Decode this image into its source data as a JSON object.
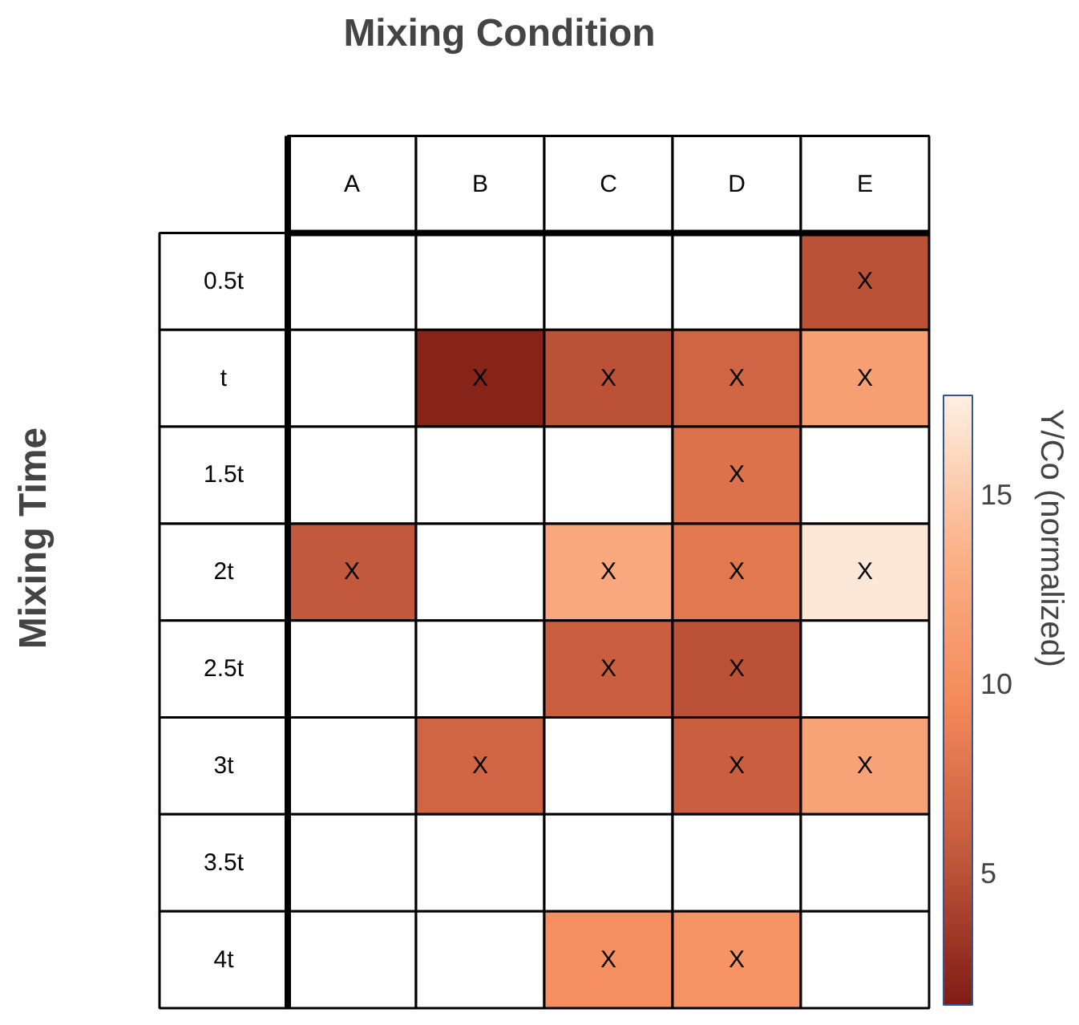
{
  "chart_data": {
    "type": "heatmap",
    "title": "Mixing Condition",
    "ylabel": "Mixing Time",
    "clabel": "Y/Co (normalized)",
    "categories": [
      "A",
      "B",
      "C",
      "D",
      "E"
    ],
    "y_categories": [
      "0.5t",
      "t",
      "1.5t",
      "2t",
      "2.5t",
      "3t",
      "3.5t",
      "4t"
    ],
    "cells": [
      [
        null,
        null,
        null,
        null,
        5
      ],
      [
        null,
        2,
        5,
        6.5,
        11.5
      ],
      [
        null,
        null,
        null,
        7.5,
        null
      ],
      [
        5.5,
        null,
        12.5,
        8,
        17
      ],
      [
        null,
        null,
        6,
        5,
        null
      ],
      [
        null,
        6.5,
        null,
        6,
        12
      ],
      [
        null,
        null,
        null,
        null,
        null
      ],
      [
        null,
        null,
        10,
        10.5,
        null
      ]
    ],
    "cell_labels": [
      [
        null,
        null,
        null,
        null,
        "X"
      ],
      [
        null,
        "X",
        "X",
        "X",
        "X"
      ],
      [
        null,
        null,
        null,
        "X",
        null
      ],
      [
        "X",
        null,
        "X",
        "X",
        "X"
      ],
      [
        null,
        null,
        "X",
        "X",
        null
      ],
      [
        null,
        "X",
        null,
        "X",
        "X"
      ],
      [
        null,
        null,
        null,
        null,
        null
      ],
      [
        null,
        null,
        "X",
        "X",
        null
      ]
    ],
    "clim": [
      1.5,
      17.6
    ],
    "cticks": [
      5,
      10,
      15
    ]
  }
}
